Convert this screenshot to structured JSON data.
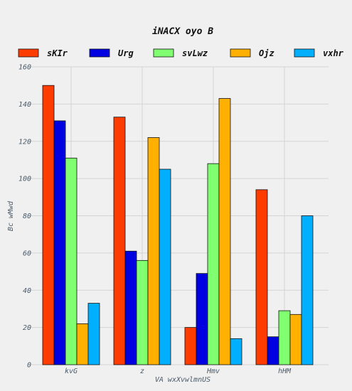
{
  "chart_data": {
    "type": "bar",
    "title": "iNACX oyo B",
    "xlabel": "VA wxXvwlmnUS",
    "ylabel": "Bc wMwd",
    "categories": [
      "kvG",
      "z",
      "Hmv",
      "hHM"
    ],
    "ylim": [
      0,
      160
    ],
    "yticks": [
      0,
      20,
      40,
      60,
      80,
      100,
      120,
      140,
      160
    ],
    "grid": true,
    "legend_position": "top",
    "series": [
      {
        "name": "sKIr",
        "color": "#ff3c00",
        "values": [
          150,
          133,
          20,
          94
        ]
      },
      {
        "name": "Urg",
        "color": "#0000e0",
        "values": [
          131,
          61,
          49,
          15
        ]
      },
      {
        "name": "svLwz",
        "color": "#80ff70",
        "values": [
          111,
          56,
          108,
          29
        ]
      },
      {
        "name": "Ojz",
        "color": "#ffb000",
        "values": [
          22,
          122,
          143,
          27
        ]
      },
      {
        "name": "vxhr",
        "color": "#00b0ff",
        "values": [
          33,
          105,
          14,
          80
        ]
      }
    ]
  }
}
